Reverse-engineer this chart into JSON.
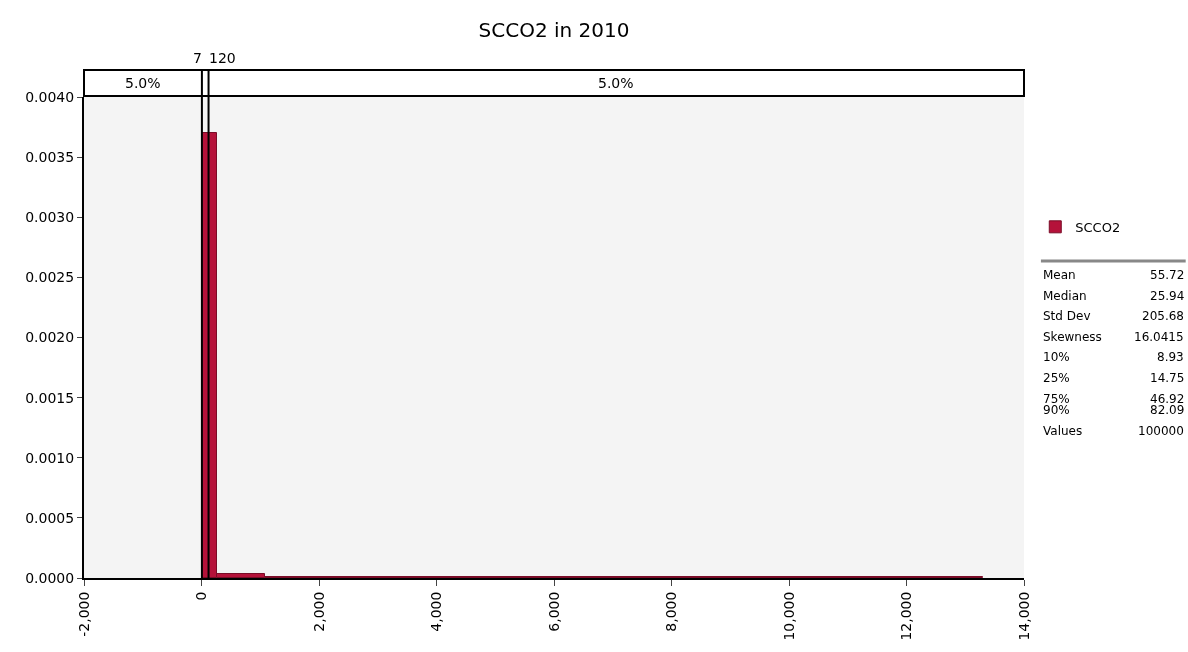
{
  "chart_data": {
    "type": "histogram",
    "title": "SCCO2 in 2010",
    "series": [
      {
        "name": "SCCO2",
        "color": "#b5123a",
        "values": [
          0.0037,
          3e-05,
          1e-05
        ]
      }
    ],
    "bins": [
      0,
      270,
      1080,
      13300
    ],
    "xlim": [
      -2000,
      14000
    ],
    "xticks": [
      {
        "value": -2000,
        "label": "-2,000"
      },
      0,
      {
        "value": 2000,
        "label": "2,000"
      },
      {
        "value": 4000,
        "label": "4,000"
      },
      {
        "value": 6000,
        "label": "6,000"
      },
      {
        "value": 8000,
        "label": "8,000"
      },
      {
        "value": 10000,
        "label": "10,000"
      },
      {
        "value": 12000,
        "label": "12,000"
      },
      {
        "value": 14000,
        "label": "14,000"
      }
    ],
    "ylim": [
      0,
      0.004
    ],
    "yticks": [
      {
        "value": 0,
        "label": "0.0000"
      },
      {
        "value": 0.0005,
        "label": "0.0005"
      },
      {
        "value": 0.001,
        "label": "0.0010"
      },
      {
        "value": 0.0015,
        "label": "0.0015"
      },
      {
        "value": 0.002,
        "label": "0.0020"
      },
      {
        "value": 0.0025,
        "label": "0.0025"
      },
      {
        "value": 0.003,
        "label": "0.0030"
      },
      {
        "value": 0.0035,
        "label": "0.0035"
      },
      {
        "value": 0.004,
        "label": "0.0040"
      }
    ],
    "ref_lines": [
      {
        "axis": "x",
        "value": 7,
        "label": "7",
        "color": "#000000"
      },
      {
        "axis": "x",
        "value": 120,
        "label": "120",
        "color": "#000000"
      }
    ],
    "annotations": [
      "5.0%",
      "5.0%",
      "Mean",
      "55.72",
      "Median",
      "25.94",
      "Std Dev",
      "205.68",
      "Skewness",
      "16.0415",
      "10%",
      "8.93",
      "25%",
      "14.75",
      "75%",
      "46.92",
      "90%",
      "82.09",
      "Values",
      "100000"
    ],
    "grid": false,
    "legend": "right"
  }
}
